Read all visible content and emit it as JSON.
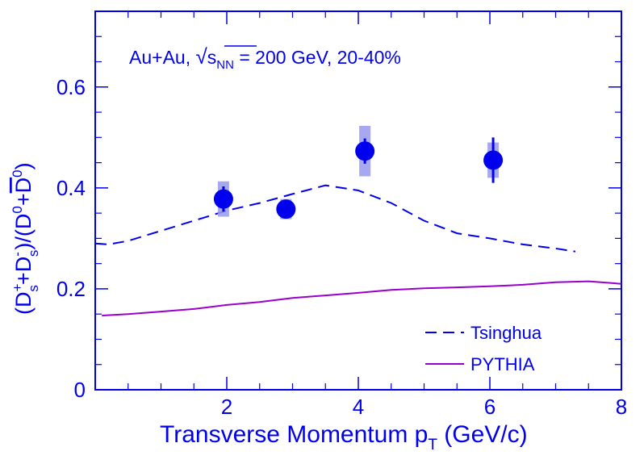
{
  "chart_data": {
    "type": "scatter",
    "annotation": {
      "prefix": "Au+Au, ",
      "sqrt_symbol": "√",
      "s": "s",
      "sub": "NN",
      "suffix": " = 200 GeV, 20-40%"
    },
    "xlabel": {
      "main": "Transverse Momentum p",
      "sub": "T",
      "unit": " (GeV/c)"
    },
    "ylabel": {
      "open": "(D",
      "s1_sup": "+",
      "s1_sub": "s",
      "plus1": "+D",
      "s2_sup": "-",
      "s2_sub": "s",
      "div": ")/(D",
      "d1_sup": "0",
      "plus2": "+",
      "dbar": "D",
      "d2_sup": "0",
      "close": ")"
    },
    "xlim": [
      0,
      8
    ],
    "ylim": [
      0,
      0.75
    ],
    "x_ticks": [
      2,
      4,
      6,
      8
    ],
    "x_tick_labels": [
      "2",
      "4",
      "6",
      "8"
    ],
    "y_ticks": [
      0.2,
      0.4,
      0.6
    ],
    "y_tick_labels": [
      "0.2",
      "0.4",
      "0.6"
    ],
    "origin_label": "0",
    "grid": false,
    "legend_position": "bottom-right",
    "series": [
      {
        "kind": "points",
        "color": "#0000ee",
        "points": [
          {
            "x": 1.95,
            "y": 0.378,
            "stat_err": 0.025,
            "sys_err": 0.035
          },
          {
            "x": 2.9,
            "y": 0.358,
            "stat_err": 0.015,
            "sys_err": 0.02
          },
          {
            "x": 4.1,
            "y": 0.473,
            "stat_err": 0.025,
            "sys_err": 0.05
          },
          {
            "x": 6.05,
            "y": 0.455,
            "stat_err": 0.045,
            "sys_err": 0.035
          }
        ]
      },
      {
        "name": "Tsinghua",
        "kind": "line",
        "dash": true,
        "color": "#0000ee",
        "x": [
          0.0,
          0.2,
          0.5,
          1.0,
          1.5,
          2.0,
          2.5,
          3.0,
          3.5,
          4.0,
          4.5,
          5.0,
          5.5,
          6.0,
          6.5,
          7.0,
          7.3
        ],
        "y": [
          0.29,
          0.288,
          0.295,
          0.315,
          0.335,
          0.355,
          0.37,
          0.388,
          0.405,
          0.395,
          0.37,
          0.335,
          0.31,
          0.3,
          0.288,
          0.28,
          0.274
        ]
      },
      {
        "name": "PYTHIA",
        "kind": "line",
        "dash": false,
        "color": "#9900cc",
        "x": [
          0.1,
          0.5,
          1.0,
          1.5,
          2.0,
          2.5,
          3.0,
          3.5,
          4.0,
          4.5,
          5.0,
          5.5,
          6.0,
          6.5,
          7.0,
          7.5,
          8.0
        ],
        "y": [
          0.147,
          0.15,
          0.155,
          0.16,
          0.168,
          0.174,
          0.182,
          0.187,
          0.192,
          0.198,
          0.201,
          0.203,
          0.205,
          0.208,
          0.213,
          0.215,
          0.21
        ]
      }
    ],
    "legend": [
      {
        "label": "Tsinghua",
        "style": "dashed",
        "color": "#0000ee"
      },
      {
        "label": "PYTHIA",
        "style": "solid",
        "color": "#9900cc"
      }
    ],
    "colors": {
      "axis": "#0000ee",
      "text": "#0000ee",
      "marker": "#0000ee",
      "sys_box": "#9999ee",
      "pythia": "#9900cc"
    }
  }
}
